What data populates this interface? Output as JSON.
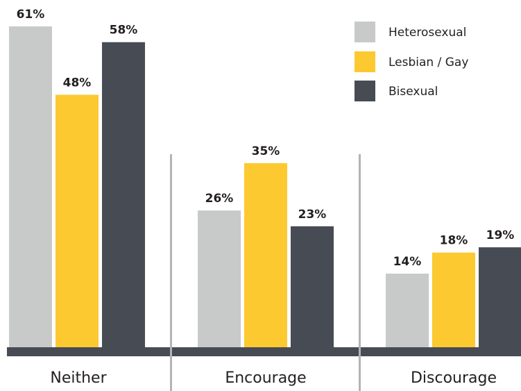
{
  "chart_data": {
    "type": "bar",
    "categories": [
      "Neither",
      "Encourage",
      "Discourage"
    ],
    "series": [
      {
        "name": "Heterosexual",
        "values": [
          61,
          26,
          14
        ],
        "labels": [
          "61%",
          "26%",
          "14%"
        ],
        "color": "#c8c9c9"
      },
      {
        "name": "Lesbian / Gay",
        "values": [
          48,
          35,
          18
        ],
        "labels": [
          "48%",
          "35%",
          "18%"
        ],
        "color": "#fcc931"
      },
      {
        "name": "Bisexual",
        "values": [
          58,
          23,
          19
        ],
        "labels": [
          "58%",
          "23%",
          "19%"
        ],
        "color": "#474b54"
      }
    ],
    "ylim": [
      0,
      61
    ],
    "legend_position": "top-right",
    "baseline_color": "#474b54",
    "separator_color": "#b3b3b3"
  }
}
